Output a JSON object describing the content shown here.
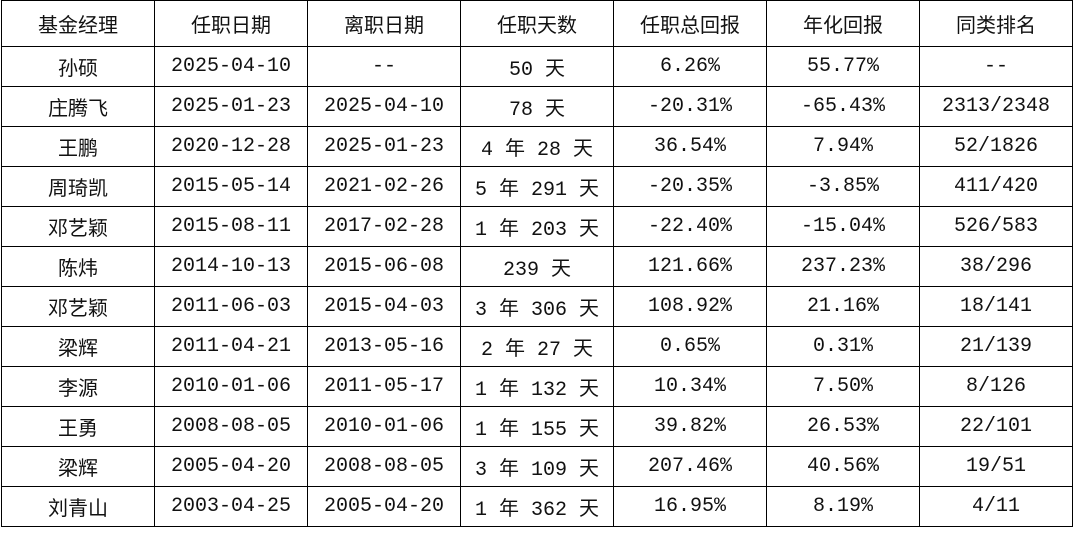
{
  "table": {
    "header": [
      "基金经理",
      "任职日期",
      "离职日期",
      "任职天数",
      "任职总回报",
      "年化回报",
      "同类排名"
    ],
    "rows": [
      [
        "孙硕",
        "2025-04-10",
        "--",
        "50 天",
        "6.26%",
        "55.77%",
        "--"
      ],
      [
        "庄腾飞",
        "2025-01-23",
        "2025-04-10",
        "78 天",
        "-20.31%",
        "-65.43%",
        "2313/2348"
      ],
      [
        "王鹏",
        "2020-12-28",
        "2025-01-23",
        "4 年 28 天",
        "36.54%",
        "7.94%",
        "52/1826"
      ],
      [
        "周琦凯",
        "2015-05-14",
        "2021-02-26",
        "5 年 291 天",
        "-20.35%",
        "-3.85%",
        "411/420"
      ],
      [
        "邓艺颖",
        "2015-08-11",
        "2017-02-28",
        "1 年 203 天",
        "-22.40%",
        "-15.04%",
        "526/583"
      ],
      [
        "陈炜",
        "2014-10-13",
        "2015-06-08",
        "239 天",
        "121.66%",
        "237.23%",
        "38/296"
      ],
      [
        "邓艺颖",
        "2011-06-03",
        "2015-04-03",
        "3 年 306 天",
        "108.92%",
        "21.16%",
        "18/141"
      ],
      [
        "梁辉",
        "2011-04-21",
        "2013-05-16",
        "2 年 27 天",
        "0.65%",
        "0.31%",
        "21/139"
      ],
      [
        "李源",
        "2010-01-06",
        "2011-05-17",
        "1 年 132 天",
        "10.34%",
        "7.50%",
        "8/126"
      ],
      [
        "王勇",
        "2008-08-05",
        "2010-01-06",
        "1 年 155 天",
        "39.82%",
        "26.53%",
        "22/101"
      ],
      [
        "梁辉",
        "2005-04-20",
        "2008-08-05",
        "3 年 109 天",
        "207.46%",
        "40.56%",
        "19/51"
      ],
      [
        "刘青山",
        "2003-04-25",
        "2005-04-20",
        "1 年 362 天",
        "16.95%",
        "8.19%",
        "4/11"
      ]
    ]
  }
}
